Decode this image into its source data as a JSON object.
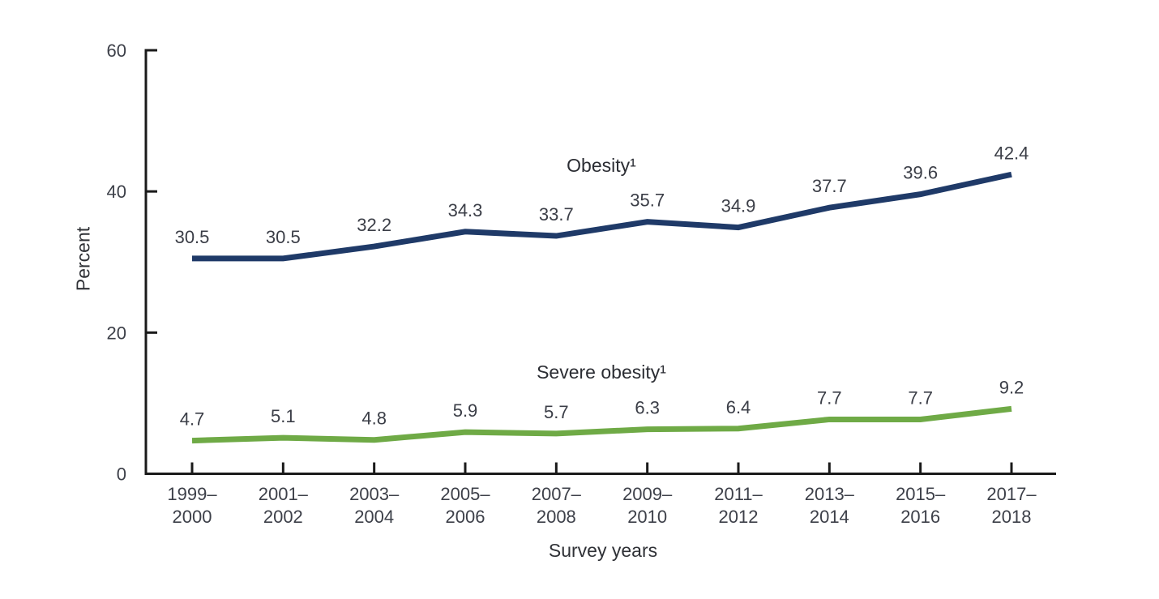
{
  "figure": {
    "background": "#ffffff"
  },
  "chart_data": {
    "type": "line",
    "title": "",
    "xlabel": "Survey years",
    "ylabel": "Percent",
    "ylim": [
      0,
      60
    ],
    "yticks": [
      0,
      20,
      40,
      60
    ],
    "grid": false,
    "legend_position": "inline-labels-above-lines",
    "categories": [
      "1999–2000",
      "2001–2002",
      "2003–2004",
      "2005–2006",
      "2007–2008",
      "2009–2010",
      "2011–2012",
      "2013–2014",
      "2015–2016",
      "2017–2018"
    ],
    "series": [
      {
        "name": "Obesity¹",
        "color": "#1f3a68",
        "values": [
          30.5,
          30.5,
          32.2,
          34.3,
          33.7,
          35.7,
          34.9,
          37.7,
          39.6,
          42.4
        ]
      },
      {
        "name": "Severe obesity¹",
        "color": "#6faa46",
        "values": [
          4.7,
          5.1,
          4.8,
          5.9,
          5.7,
          6.3,
          6.4,
          7.7,
          7.7,
          9.2
        ]
      }
    ],
    "axis_color": "#1a1a1a",
    "tick_label_color": "#3d4049",
    "data_label_color": "#3b3e47"
  }
}
